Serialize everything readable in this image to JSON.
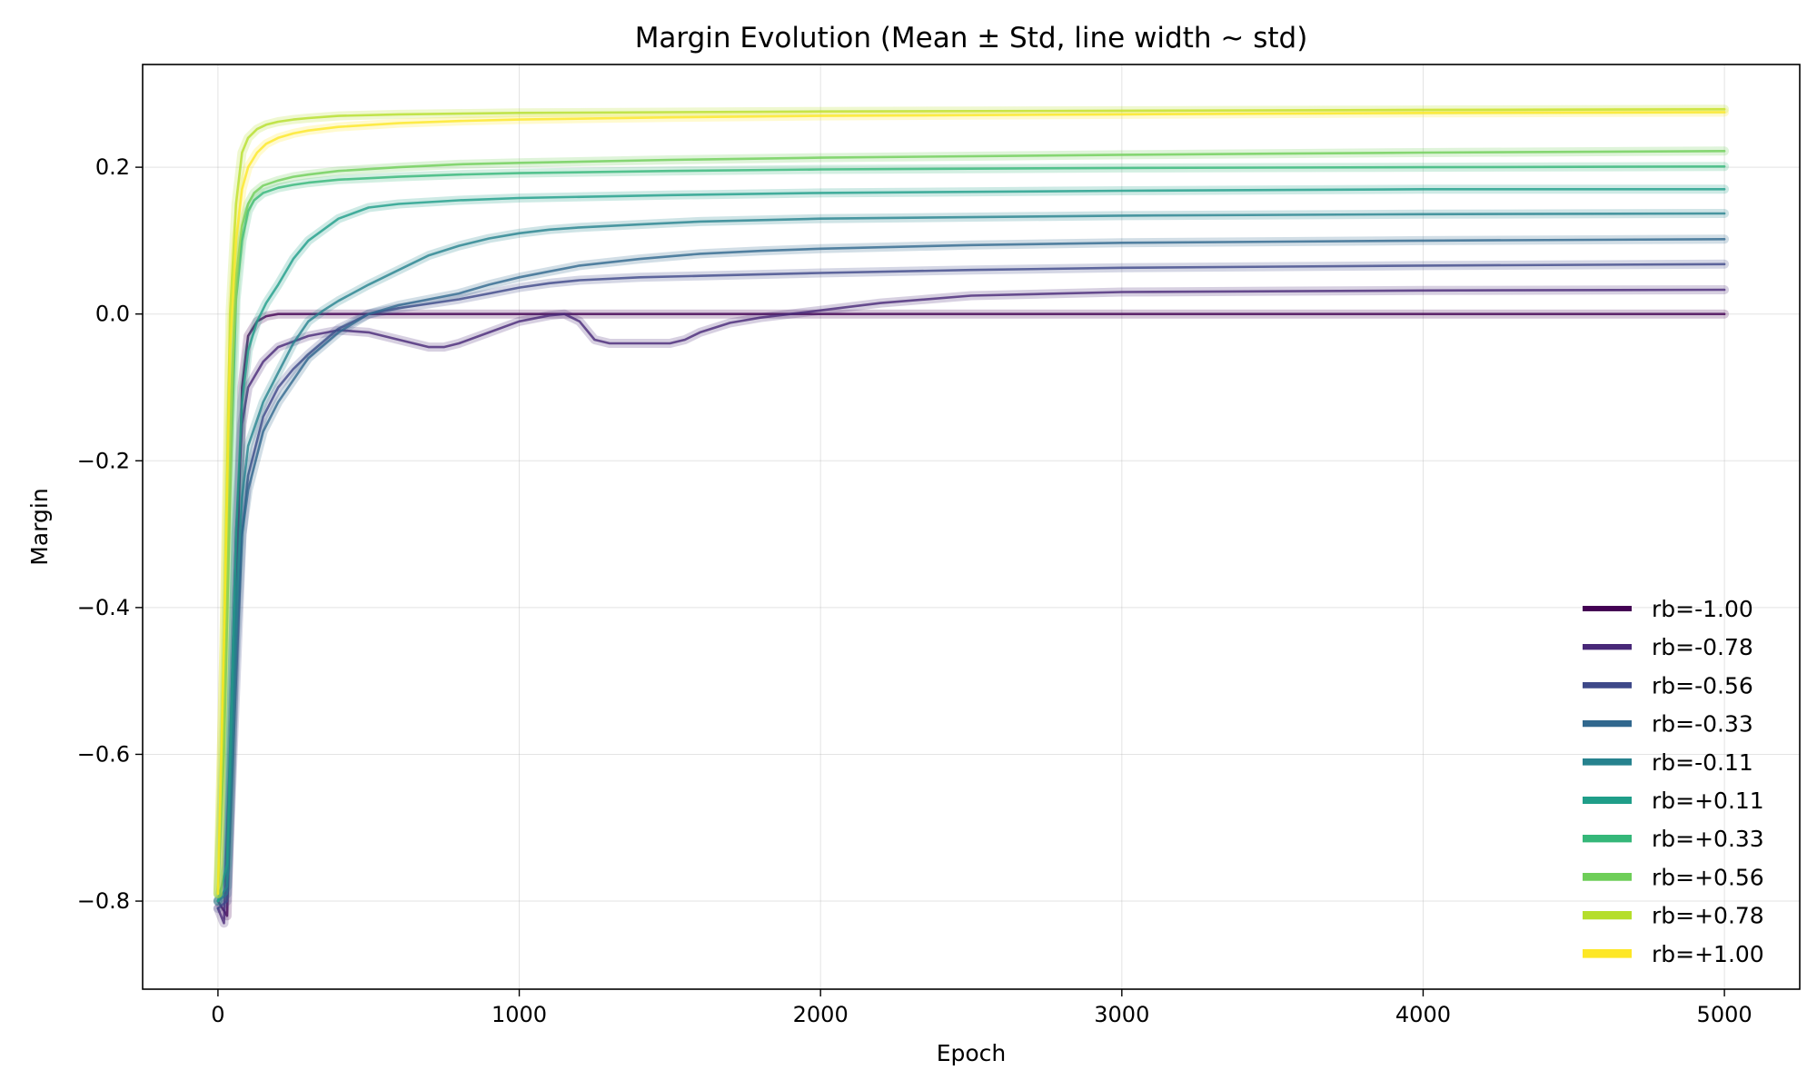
{
  "chart_data": {
    "type": "line",
    "title": "Margin Evolution (Mean ± Std, line width ~ std)",
    "xlabel": "Epoch",
    "ylabel": "Margin",
    "xlim": [
      -250,
      5250
    ],
    "ylim": [
      -0.92,
      0.34
    ],
    "xticks": [
      0,
      1000,
      2000,
      3000,
      4000,
      5000
    ],
    "xtick_labels": [
      "0",
      "1000",
      "2000",
      "3000",
      "4000",
      "5000"
    ],
    "yticks": [
      -0.8,
      -0.6,
      -0.4,
      -0.2,
      0.0,
      0.2
    ],
    "ytick_labels": [
      "−0.8",
      "−0.6",
      "−0.4",
      "−0.2",
      "0.0",
      "0.2"
    ],
    "grid": true,
    "legend_position": "lower-right",
    "series": [
      {
        "name": "rb=-1.00",
        "color": "#440154",
        "x": [
          0,
          30,
          60,
          80,
          100,
          130,
          160,
          200,
          300,
          500,
          1000,
          2000,
          3000,
          4000,
          5000
        ],
        "y": [
          -0.8,
          -0.82,
          -0.4,
          -0.1,
          -0.03,
          -0.01,
          -0.003,
          0,
          0,
          0,
          0,
          0,
          0,
          0,
          0
        ]
      },
      {
        "name": "rb=-0.78",
        "color": "#482878",
        "x": [
          0,
          20,
          40,
          60,
          80,
          100,
          150,
          200,
          300,
          400,
          500,
          600,
          700,
          750,
          800,
          900,
          1000,
          1100,
          1150,
          1200,
          1250,
          1300,
          1400,
          1500,
          1550,
          1600,
          1700,
          1800,
          1900,
          2000,
          2200,
          2500,
          3000,
          4000,
          5000
        ],
        "y": [
          -0.81,
          -0.83,
          -0.6,
          -0.3,
          -0.15,
          -0.1,
          -0.065,
          -0.045,
          -0.03,
          -0.022,
          -0.025,
          -0.035,
          -0.045,
          -0.045,
          -0.04,
          -0.025,
          -0.01,
          -0.002,
          0.0,
          -0.01,
          -0.035,
          -0.04,
          -0.04,
          -0.04,
          -0.035,
          -0.025,
          -0.012,
          -0.005,
          0.0,
          0.005,
          0.015,
          0.025,
          0.03,
          0.032,
          0.033
        ]
      },
      {
        "name": "rb=-0.56",
        "color": "#3e4989",
        "x": [
          0,
          30,
          60,
          80,
          100,
          150,
          200,
          250,
          300,
          400,
          500,
          600,
          700,
          800,
          900,
          1000,
          1100,
          1200,
          1400,
          1600,
          1800,
          2000,
          2500,
          3000,
          4000,
          5000
        ],
        "y": [
          -0.81,
          -0.8,
          -0.5,
          -0.3,
          -0.22,
          -0.14,
          -0.1,
          -0.075,
          -0.055,
          -0.02,
          0.0,
          0.008,
          0.014,
          0.02,
          0.028,
          0.036,
          0.042,
          0.046,
          0.05,
          0.052,
          0.054,
          0.056,
          0.06,
          0.063,
          0.066,
          0.068
        ]
      },
      {
        "name": "rb=-0.33",
        "color": "#31688e",
        "x": [
          0,
          30,
          60,
          80,
          100,
          150,
          200,
          250,
          300,
          400,
          500,
          600,
          700,
          800,
          900,
          1000,
          1100,
          1200,
          1400,
          1600,
          1800,
          2000,
          2500,
          3000,
          4000,
          5000
        ],
        "y": [
          -0.8,
          -0.79,
          -0.45,
          -0.3,
          -0.24,
          -0.16,
          -0.12,
          -0.09,
          -0.06,
          -0.025,
          0.0,
          0.012,
          0.02,
          0.028,
          0.04,
          0.05,
          0.058,
          0.066,
          0.075,
          0.082,
          0.086,
          0.089,
          0.094,
          0.097,
          0.1,
          0.102
        ]
      },
      {
        "name": "rb=-0.11",
        "color": "#26828e",
        "x": [
          0,
          30,
          60,
          80,
          100,
          150,
          200,
          250,
          300,
          350,
          400,
          500,
          600,
          700,
          800,
          900,
          1000,
          1100,
          1200,
          1400,
          1600,
          2000,
          3000,
          4000,
          5000
        ],
        "y": [
          -0.8,
          -0.78,
          -0.4,
          -0.25,
          -0.18,
          -0.12,
          -0.08,
          -0.04,
          -0.01,
          0.005,
          0.018,
          0.04,
          0.06,
          0.08,
          0.093,
          0.103,
          0.11,
          0.115,
          0.118,
          0.122,
          0.126,
          0.13,
          0.134,
          0.136,
          0.137
        ]
      },
      {
        "name": "rb=+0.11",
        "color": "#1f9e89",
        "x": [
          0,
          30,
          60,
          80,
          100,
          130,
          160,
          200,
          250,
          300,
          400,
          500,
          600,
          800,
          1000,
          1500,
          2000,
          3000,
          4000,
          5000
        ],
        "y": [
          -0.8,
          -0.75,
          -0.3,
          -0.12,
          -0.05,
          -0.01,
          0.015,
          0.04,
          0.075,
          0.1,
          0.13,
          0.145,
          0.15,
          0.155,
          0.158,
          0.162,
          0.165,
          0.168,
          0.17,
          0.17
        ]
      },
      {
        "name": "rb=+0.33",
        "color": "#35b779",
        "x": [
          0,
          20,
          40,
          60,
          80,
          100,
          120,
          150,
          200,
          250,
          300,
          400,
          600,
          800,
          1000,
          1500,
          2000,
          3000,
          4000,
          5000
        ],
        "y": [
          -0.79,
          -0.6,
          -0.25,
          0.02,
          0.1,
          0.14,
          0.155,
          0.165,
          0.172,
          0.176,
          0.179,
          0.183,
          0.187,
          0.19,
          0.192,
          0.195,
          0.197,
          0.199,
          0.2,
          0.201
        ]
      },
      {
        "name": "rb=+0.56",
        "color": "#6ece58",
        "x": [
          0,
          20,
          40,
          60,
          80,
          100,
          120,
          150,
          200,
          250,
          300,
          400,
          600,
          800,
          1000,
          1500,
          2000,
          3000,
          4000,
          5000
        ],
        "y": [
          -0.79,
          -0.55,
          -0.15,
          0.05,
          0.12,
          0.15,
          0.165,
          0.175,
          0.182,
          0.187,
          0.19,
          0.195,
          0.2,
          0.204,
          0.206,
          0.21,
          0.213,
          0.217,
          0.22,
          0.222
        ]
      },
      {
        "name": "rb=+0.78",
        "color": "#b5de2b",
        "x": [
          0,
          20,
          40,
          60,
          80,
          100,
          130,
          160,
          200,
          250,
          300,
          400,
          600,
          1000,
          2000,
          3000,
          4000,
          5000
        ],
        "y": [
          -0.79,
          -0.45,
          0.0,
          0.15,
          0.22,
          0.24,
          0.252,
          0.258,
          0.262,
          0.265,
          0.267,
          0.27,
          0.272,
          0.274,
          0.276,
          0.277,
          0.278,
          0.279
        ]
      },
      {
        "name": "rb=+1.00",
        "color": "#fde725",
        "x": [
          0,
          20,
          40,
          60,
          80,
          100,
          130,
          160,
          200,
          250,
          300,
          400,
          600,
          800,
          1000,
          1500,
          2000,
          3000,
          4000,
          5000
        ],
        "y": [
          -0.79,
          -0.45,
          -0.05,
          0.1,
          0.17,
          0.2,
          0.22,
          0.232,
          0.24,
          0.246,
          0.25,
          0.255,
          0.26,
          0.263,
          0.265,
          0.268,
          0.27,
          0.272,
          0.274,
          0.275
        ]
      }
    ]
  }
}
